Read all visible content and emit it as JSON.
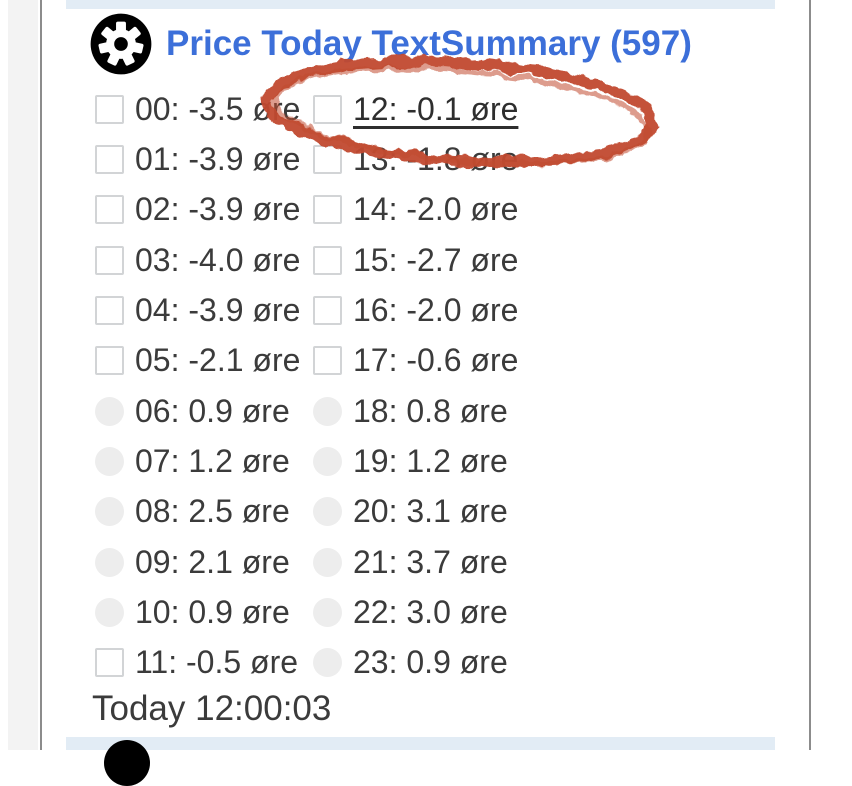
{
  "page": {
    "background_color": "#ffffff",
    "panel_border_color": "#8c8c8c",
    "section_band_color": "#e2ecf5"
  },
  "section": {
    "title": "Price Today TextSummary (597)",
    "title_color": "#3c6fd9",
    "icon": "gear-icon",
    "timestamp_line": "Today 12:00:03"
  },
  "annotation": {
    "shape": "hand-drawn-ellipse",
    "color": "#c14a30",
    "around_text": "12: -0.1 øre"
  },
  "price_list": {
    "unit": "øre",
    "columns": [
      {
        "rows": [
          {
            "hour": "00",
            "value": -3.5,
            "label": "00: -3.5 øre",
            "control": "checkbox",
            "checked": false,
            "underline": false
          },
          {
            "hour": "01",
            "value": -3.9,
            "label": "01: -3.9 øre",
            "control": "checkbox",
            "checked": false,
            "underline": false
          },
          {
            "hour": "02",
            "value": -3.9,
            "label": "02: -3.9 øre",
            "control": "checkbox",
            "checked": false,
            "underline": false
          },
          {
            "hour": "03",
            "value": -4.0,
            "label": "03: -4.0 øre",
            "control": "checkbox",
            "checked": false,
            "underline": false
          },
          {
            "hour": "04",
            "value": -3.9,
            "label": "04: -3.9 øre",
            "control": "checkbox",
            "checked": false,
            "underline": false
          },
          {
            "hour": "05",
            "value": -2.1,
            "label": "05: -2.1 øre",
            "control": "checkbox",
            "checked": false,
            "underline": false
          },
          {
            "hour": "06",
            "value": 0.9,
            "label": "06: 0.9 øre",
            "control": "circle",
            "checked": false,
            "underline": false
          },
          {
            "hour": "07",
            "value": 1.2,
            "label": "07: 1.2 øre",
            "control": "circle",
            "checked": false,
            "underline": false
          },
          {
            "hour": "08",
            "value": 2.5,
            "label": "08: 2.5 øre",
            "control": "circle",
            "checked": false,
            "underline": false
          },
          {
            "hour": "09",
            "value": 2.1,
            "label": "09: 2.1 øre",
            "control": "circle",
            "checked": false,
            "underline": false
          },
          {
            "hour": "10",
            "value": 0.9,
            "label": "10: 0.9 øre",
            "control": "circle",
            "checked": false,
            "underline": false
          },
          {
            "hour": "11",
            "value": -0.5,
            "label": "11: -0.5 øre",
            "control": "checkbox",
            "checked": false,
            "underline": false
          }
        ]
      },
      {
        "rows": [
          {
            "hour": "12",
            "value": -0.1,
            "label": "12: -0.1 øre",
            "control": "checkbox",
            "checked": false,
            "underline": true
          },
          {
            "hour": "13",
            "value": -1.8,
            "label": "13: -1.8 øre",
            "control": "checkbox",
            "checked": false,
            "underline": false
          },
          {
            "hour": "14",
            "value": -2.0,
            "label": "14: -2.0 øre",
            "control": "checkbox",
            "checked": false,
            "underline": false
          },
          {
            "hour": "15",
            "value": -2.7,
            "label": "15: -2.7 øre",
            "control": "checkbox",
            "checked": false,
            "underline": false
          },
          {
            "hour": "16",
            "value": -2.0,
            "label": "16: -2.0 øre",
            "control": "checkbox",
            "checked": false,
            "underline": false
          },
          {
            "hour": "17",
            "value": -0.6,
            "label": "17: -0.6 øre",
            "control": "checkbox",
            "checked": false,
            "underline": false
          },
          {
            "hour": "18",
            "value": 0.8,
            "label": "18: 0.8 øre",
            "control": "circle",
            "checked": false,
            "underline": false
          },
          {
            "hour": "19",
            "value": 1.2,
            "label": "19: 1.2 øre",
            "control": "circle",
            "checked": false,
            "underline": false
          },
          {
            "hour": "20",
            "value": 3.1,
            "label": "20: 3.1 øre",
            "control": "circle",
            "checked": false,
            "underline": false
          },
          {
            "hour": "21",
            "value": 3.7,
            "label": "21: 3.7 øre",
            "control": "circle",
            "checked": false,
            "underline": false
          },
          {
            "hour": "22",
            "value": 3.0,
            "label": "22: 3.0 øre",
            "control": "circle",
            "checked": false,
            "underline": false
          },
          {
            "hour": "23",
            "value": 0.9,
            "label": "23: 0.9 øre",
            "control": "circle",
            "checked": false,
            "underline": false
          }
        ]
      }
    ]
  },
  "next_section": {
    "icon": "gear-icon"
  }
}
